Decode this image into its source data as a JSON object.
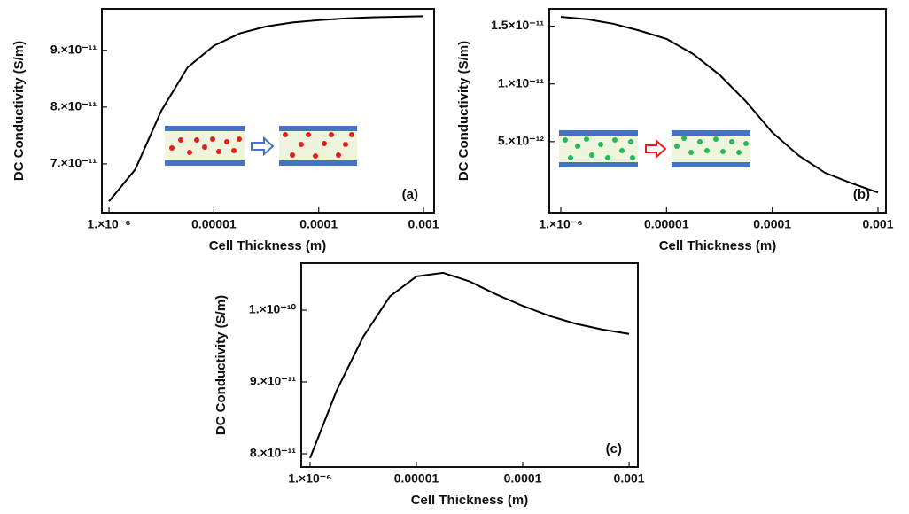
{
  "chart_data": [
    {
      "type": "line",
      "xscale": "log",
      "xlabel": "Cell Thickness (m)",
      "ylabel": "DC Conductivity (S/m)",
      "annotation": "(a)",
      "x": [
        1e-06,
        1.778e-06,
        3.162e-06,
        5.623e-06,
        1e-05,
        1.778e-05,
        3.162e-05,
        5.623e-05,
        0.0001,
        0.0001778,
        0.0003162,
        0.0005623,
        0.001
      ],
      "series": [
        {
          "color": "#000000",
          "values": [
            6.34e-11,
            6.9e-11,
            7.94e-11,
            8.7e-11,
            9.08e-11,
            9.3e-11,
            9.42e-11,
            9.49e-11,
            9.53e-11,
            9.56e-11,
            9.58e-11,
            9.59e-11,
            9.6e-11
          ]
        }
      ],
      "xlim": [
        8.55e-07,
        0.001262
      ],
      "ylim": [
        6.14e-11,
        9.73e-11
      ],
      "xticks": [
        {
          "value": 1e-06,
          "label": "1.×10⁻⁶"
        },
        1e-05,
        0.0001,
        0.001
      ],
      "yticks": [
        {
          "value": 7e-11,
          "label": "7.×10⁻¹¹"
        },
        {
          "value": 8e-11,
          "label": "8.×10⁻¹¹"
        },
        {
          "value": 9e-11,
          "label": "9.×10⁻¹¹"
        }
      ]
    },
    {
      "type": "line",
      "xscale": "log",
      "xlabel": "Cell Thickness (m)",
      "ylabel": "DC Conductivity (S/m)",
      "annotation": "(b)",
      "x": [
        1e-06,
        1.778e-06,
        3.162e-06,
        5.623e-06,
        1e-05,
        1.778e-05,
        3.162e-05,
        5.623e-05,
        0.0001,
        0.0001778,
        0.0003162,
        0.0005623,
        0.001
      ],
      "series": [
        {
          "color": "#000000",
          "values": [
            1.58e-11,
            1.56e-11,
            1.52e-11,
            1.46e-11,
            1.39e-11,
            1.26e-11,
            1.08e-11,
            8.5e-12,
            5.8e-12,
            3.8e-12,
            2.3e-12,
            1.4e-12,
            6e-13
          ]
        }
      ],
      "xlim": [
        7.78e-07,
        0.00119
      ],
      "ylim": [
        -1.15e-12,
        1.65e-11
      ],
      "xticks": [
        {
          "value": 1e-06,
          "label": "1.×10⁻⁶"
        },
        1e-05,
        0.0001,
        0.001
      ],
      "yticks": [
        {
          "value": 5e-12,
          "label": "5.×10⁻¹²"
        },
        {
          "value": 1e-11,
          "label": "1.×10⁻¹¹"
        },
        {
          "value": 1.5e-11,
          "label": "1.5×10⁻¹¹"
        }
      ]
    },
    {
      "type": "line",
      "xscale": "log",
      "xlabel": "Cell Thickness (m)",
      "ylabel": "DC Conductivity (S/m)",
      "annotation": "(c)",
      "x": [
        1e-06,
        1.778e-06,
        3.162e-06,
        5.623e-06,
        1e-05,
        1.778e-05,
        3.162e-05,
        5.623e-05,
        0.0001,
        0.0001778,
        0.0003162,
        0.0005623,
        0.001
      ],
      "series": [
        {
          "color": "#000000",
          "values": [
            7.94e-11,
            8.88e-11,
            9.63e-11,
            1.019e-10,
            1.047e-10,
            1.052e-10,
            1.04e-10,
            1.022e-10,
            1.006e-10,
            9.92e-11,
            9.81e-11,
            9.73e-11,
            9.67e-11
          ]
        }
      ],
      "xlim": [
        8.26e-07,
        0.00121
      ],
      "ylim": [
        7.815e-11,
        1.0654e-10
      ],
      "xticks": [
        {
          "value": 1e-06,
          "label": "1.×10⁻⁶"
        },
        1e-05,
        0.0001,
        0.001
      ],
      "yticks": [
        {
          "value": 8e-11,
          "label": "8.×10⁻¹¹"
        },
        {
          "value": 9e-11,
          "label": "9.×10⁻¹¹"
        },
        {
          "value": 1e-10,
          "label": "1.×10⁻¹⁰"
        }
      ]
    }
  ]
}
